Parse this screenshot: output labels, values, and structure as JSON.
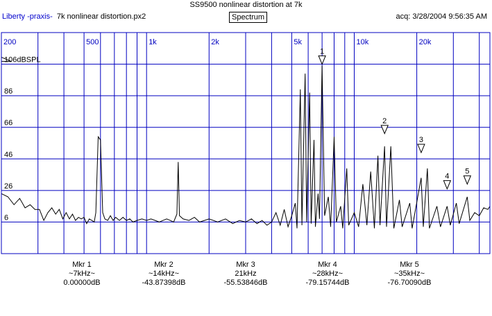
{
  "window": {
    "title": "SS9500 nonlinear distortion at 7k",
    "app": "Liberty -praxis-",
    "file": "7k nonlinear distortion.px2",
    "view_button": "Spectrum",
    "acq": "acq: 3/28/2004 9:56:35 AM"
  },
  "colors": {
    "grid": "#0000c0",
    "trace": "#000000",
    "text_accent": "#0000cc"
  },
  "chart_data": {
    "type": "line",
    "xscale": "log",
    "xlim": [
      200,
      45000
    ],
    "ylim": [
      -14,
      126
    ],
    "grid": true,
    "ylabel": "106dBSPL",
    "x_ticks": [
      {
        "value": 200,
        "label": "200"
      },
      {
        "value": 500,
        "label": "500"
      },
      {
        "value": 1000,
        "label": "1k"
      },
      {
        "value": 2000,
        "label": "2k"
      },
      {
        "value": 5000,
        "label": "5k"
      },
      {
        "value": 10000,
        "label": "10k"
      },
      {
        "value": 20000,
        "label": "20k"
      }
    ],
    "y_ticks": [
      {
        "value": 106,
        "label": "106dBSPL"
      },
      {
        "value": 86,
        "label": "86"
      },
      {
        "value": 66,
        "label": "66"
      },
      {
        "value": 46,
        "label": "46"
      },
      {
        "value": 26,
        "label": "26"
      },
      {
        "value": 6,
        "label": "6"
      }
    ],
    "series": [
      {
        "values": [
          [
            200,
            24
          ],
          [
            215,
            22
          ],
          [
            230,
            17
          ],
          [
            245,
            21
          ],
          [
            260,
            15
          ],
          [
            275,
            17
          ],
          [
            290,
            14
          ],
          [
            305,
            14
          ],
          [
            320,
            7
          ],
          [
            335,
            12
          ],
          [
            350,
            15
          ],
          [
            365,
            11
          ],
          [
            380,
            14
          ],
          [
            395,
            8
          ],
          [
            410,
            12
          ],
          [
            425,
            8
          ],
          [
            440,
            11
          ],
          [
            455,
            7
          ],
          [
            470,
            9
          ],
          [
            485,
            8
          ],
          [
            500,
            9
          ],
          [
            515,
            5
          ],
          [
            530,
            8
          ],
          [
            545,
            7
          ],
          [
            560,
            6
          ],
          [
            570,
            12
          ],
          [
            585,
            60
          ],
          [
            600,
            58
          ],
          [
            615,
            12
          ],
          [
            630,
            8
          ],
          [
            650,
            7
          ],
          [
            670,
            10
          ],
          [
            690,
            7
          ],
          [
            710,
            9
          ],
          [
            740,
            7
          ],
          [
            770,
            9
          ],
          [
            800,
            7
          ],
          [
            830,
            8
          ],
          [
            860,
            6
          ],
          [
            900,
            7
          ],
          [
            950,
            8
          ],
          [
            1000,
            7
          ],
          [
            1050,
            8
          ],
          [
            1100,
            7
          ],
          [
            1150,
            6
          ],
          [
            1200,
            7
          ],
          [
            1250,
            8
          ],
          [
            1300,
            7
          ],
          [
            1350,
            6
          ],
          [
            1400,
            11
          ],
          [
            1420,
            44
          ],
          [
            1440,
            10
          ],
          [
            1500,
            8
          ],
          [
            1600,
            7
          ],
          [
            1700,
            9
          ],
          [
            1800,
            6
          ],
          [
            1900,
            7
          ],
          [
            2000,
            8
          ],
          [
            2200,
            6
          ],
          [
            2400,
            8
          ],
          [
            2600,
            5
          ],
          [
            2800,
            7
          ],
          [
            3000,
            6
          ],
          [
            3200,
            8
          ],
          [
            3400,
            5
          ],
          [
            3600,
            7
          ],
          [
            3800,
            4
          ],
          [
            4000,
            6
          ],
          [
            4200,
            12
          ],
          [
            4400,
            4
          ],
          [
            4600,
            14
          ],
          [
            4800,
            3
          ],
          [
            5000,
            10
          ],
          [
            5200,
            18
          ],
          [
            5300,
            2
          ],
          [
            5500,
            90
          ],
          [
            5600,
            4
          ],
          [
            5800,
            100
          ],
          [
            5900,
            6
          ],
          [
            6100,
            88
          ],
          [
            6200,
            5
          ],
          [
            6400,
            58
          ],
          [
            6500,
            3
          ],
          [
            6700,
            24
          ],
          [
            6800,
            8
          ],
          [
            7000,
            105
          ],
          [
            7200,
            10
          ],
          [
            7500,
            22
          ],
          [
            7700,
            3
          ],
          [
            8000,
            60
          ],
          [
            8200,
            6
          ],
          [
            8600,
            16
          ],
          [
            8800,
            2
          ],
          [
            9200,
            40
          ],
          [
            9400,
            4
          ],
          [
            10000,
            12
          ],
          [
            10500,
            3
          ],
          [
            11000,
            30
          ],
          [
            11500,
            4
          ],
          [
            12000,
            38
          ],
          [
            12500,
            2
          ],
          [
            13000,
            48
          ],
          [
            13300,
            4
          ],
          [
            14000,
            54
          ],
          [
            14300,
            3
          ],
          [
            15000,
            54
          ],
          [
            15500,
            2
          ],
          [
            16500,
            20
          ],
          [
            17000,
            3
          ],
          [
            18500,
            18
          ],
          [
            19000,
            2
          ],
          [
            21000,
            34
          ],
          [
            21500,
            3
          ],
          [
            22500,
            40
          ],
          [
            23000,
            2
          ],
          [
            25000,
            16
          ],
          [
            26000,
            3
          ],
          [
            28000,
            16
          ],
          [
            29000,
            4
          ],
          [
            31000,
            18
          ],
          [
            32000,
            5
          ],
          [
            35000,
            22
          ],
          [
            36000,
            7
          ],
          [
            38000,
            12
          ],
          [
            40000,
            10
          ],
          [
            42000,
            15
          ],
          [
            44000,
            14
          ],
          [
            45000,
            16
          ]
        ]
      }
    ],
    "markers": [
      {
        "id": "1",
        "x": 7000,
        "y": 106
      },
      {
        "id": "2",
        "x": 14000,
        "y": 62
      },
      {
        "id": "3",
        "x": 21000,
        "y": 50
      },
      {
        "id": "4",
        "x": 28000,
        "y": 27
      },
      {
        "id": "5",
        "x": 35000,
        "y": 30
      }
    ],
    "marker_readouts": [
      {
        "name": "Mkr 1",
        "freq": "~7kHz~",
        "value": "0.00000dB"
      },
      {
        "name": "Mkr 2",
        "freq": "~14kHz~",
        "value": "-43.87398dB"
      },
      {
        "name": "Mkr 3",
        "freq": "21kHz",
        "value": "-55.53846dB"
      },
      {
        "name": "Mkr 4",
        "freq": "~28kHz~",
        "value": "-79.15744dB"
      },
      {
        "name": "Mkr 5",
        "freq": "~35kHz~",
        "value": "-76.70090dB"
      }
    ]
  }
}
